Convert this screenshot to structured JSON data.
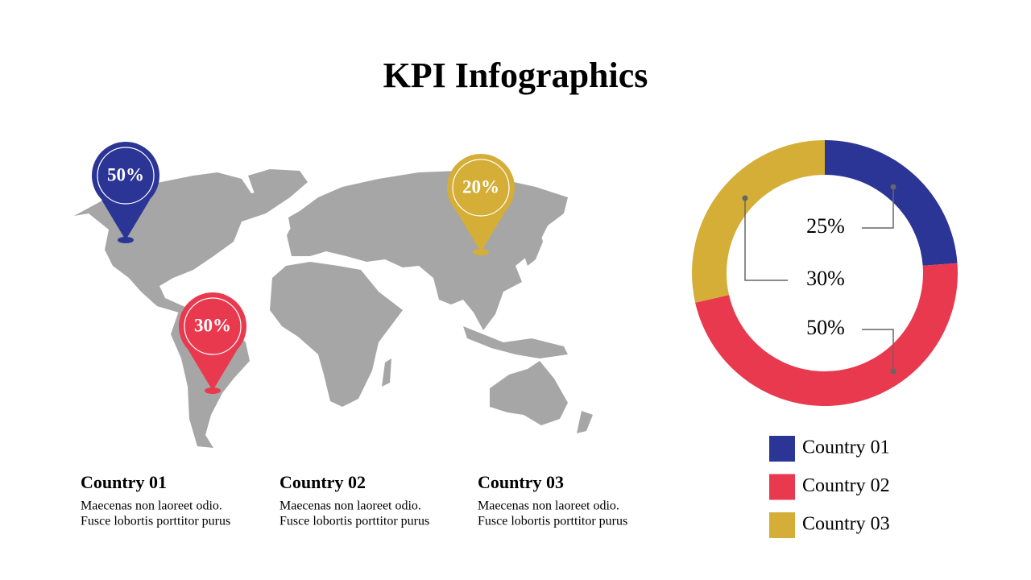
{
  "title": "KPI Infographics",
  "pins": [
    {
      "label": "50%",
      "color": "#2b3595"
    },
    {
      "label": "30%",
      "color": "#e8394f"
    },
    {
      "label": "20%",
      "color": "#d4ae36"
    }
  ],
  "countries": [
    {
      "heading": "Country 01",
      "lines": [
        "Maecenas non laoreet odio.",
        "Fusce lobortis porttitor purus"
      ]
    },
    {
      "heading": "Country 02",
      "lines": [
        "Maecenas non laoreet odio.",
        "Fusce lobortis porttitor purus"
      ]
    },
    {
      "heading": "Country 03",
      "lines": [
        "Maecenas non laoreet odio.",
        "Fusce lobortis porttitor purus"
      ]
    }
  ],
  "chart_data": {
    "type": "donut",
    "categories": [
      "Country 01",
      "Country 02",
      "Country 03"
    ],
    "values": [
      25,
      50,
      30
    ],
    "value_labels": [
      "25%",
      "50%",
      "30%"
    ],
    "colors": [
      "#2b3595",
      "#e8394f",
      "#d4ae36"
    ],
    "legend": "bottom-right"
  }
}
